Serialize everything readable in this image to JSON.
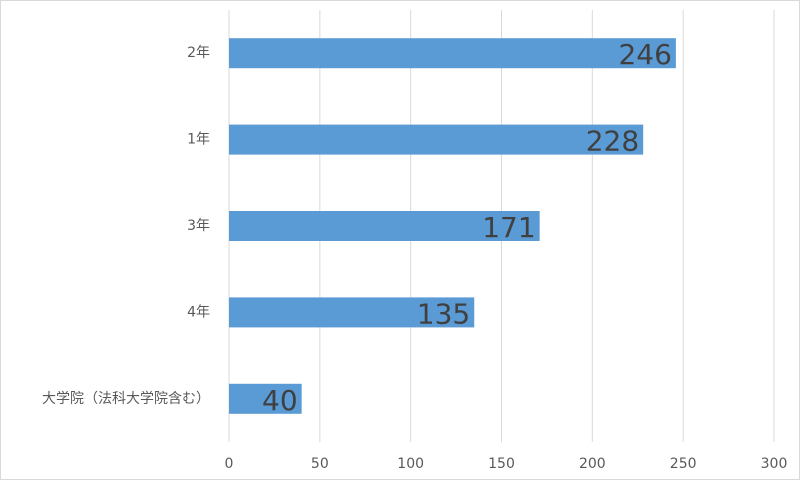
{
  "chart_data": {
    "type": "bar",
    "orientation": "horizontal",
    "categories": [
      "2年",
      "1年",
      "3年",
      "4年",
      "大学院（法科大学院含む）"
    ],
    "values": [
      246,
      228,
      171,
      135,
      40
    ],
    "color": "#5b9bd5",
    "xlim": [
      0,
      300
    ],
    "xticks": [
      0,
      50,
      100,
      150,
      200,
      250,
      300
    ],
    "grid": true,
    "data_labels": true
  }
}
